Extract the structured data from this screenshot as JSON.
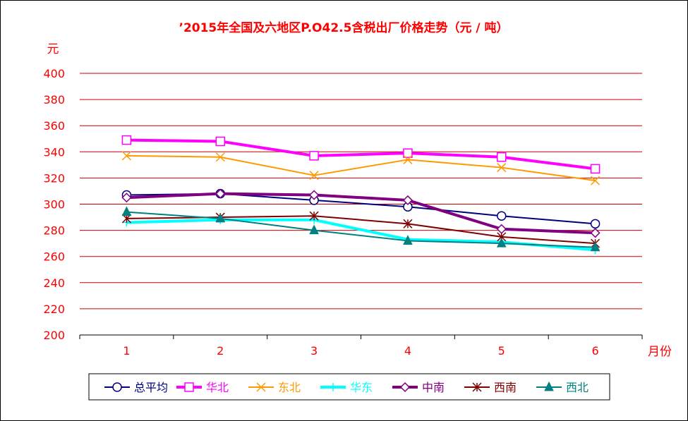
{
  "chart_data": {
    "type": "line",
    "title": "’2015年全国及六地区P.O42.5含税出厂价格走势（元 / 吨）",
    "ylabel": "元",
    "xlabel": "月份",
    "categories": [
      "1",
      "2",
      "3",
      "4",
      "5",
      "6"
    ],
    "ylim": [
      200,
      400
    ],
    "yticks": [
      200,
      220,
      240,
      260,
      280,
      300,
      320,
      340,
      360,
      380,
      400
    ],
    "grid": true,
    "legend_position": "bottom",
    "series": [
      {
        "name": "总平均",
        "values": [
          307,
          308,
          303,
          298,
          291,
          285
        ],
        "color": "#000080",
        "marker": "circle",
        "width": 2
      },
      {
        "name": "华北",
        "values": [
          349,
          348,
          337,
          339,
          336,
          327
        ],
        "color": "#ff00ff",
        "marker": "square",
        "width": 4
      },
      {
        "name": "东北",
        "values": [
          337,
          336,
          322,
          334,
          328,
          318
        ],
        "color": "#ff9900",
        "marker": "x",
        "width": 2
      },
      {
        "name": "华东",
        "values": [
          286,
          288,
          288,
          273,
          271,
          265
        ],
        "color": "#00ffff",
        "marker": "plus",
        "width": 4
      },
      {
        "name": "中南",
        "values": [
          305,
          308,
          307,
          303,
          281,
          278
        ],
        "color": "#800080",
        "marker": "diamond",
        "width": 4
      },
      {
        "name": "西南",
        "values": [
          289,
          290,
          291,
          285,
          275,
          270
        ],
        "color": "#800000",
        "marker": "star",
        "width": 2
      },
      {
        "name": "西北",
        "values": [
          294,
          289,
          280,
          272,
          270,
          267
        ],
        "color": "#008080",
        "marker": "triangle",
        "width": 2
      }
    ]
  },
  "colors": {
    "axis_text": "#ff0000",
    "gridline": "#cc0000",
    "title": "#ff0000"
  }
}
